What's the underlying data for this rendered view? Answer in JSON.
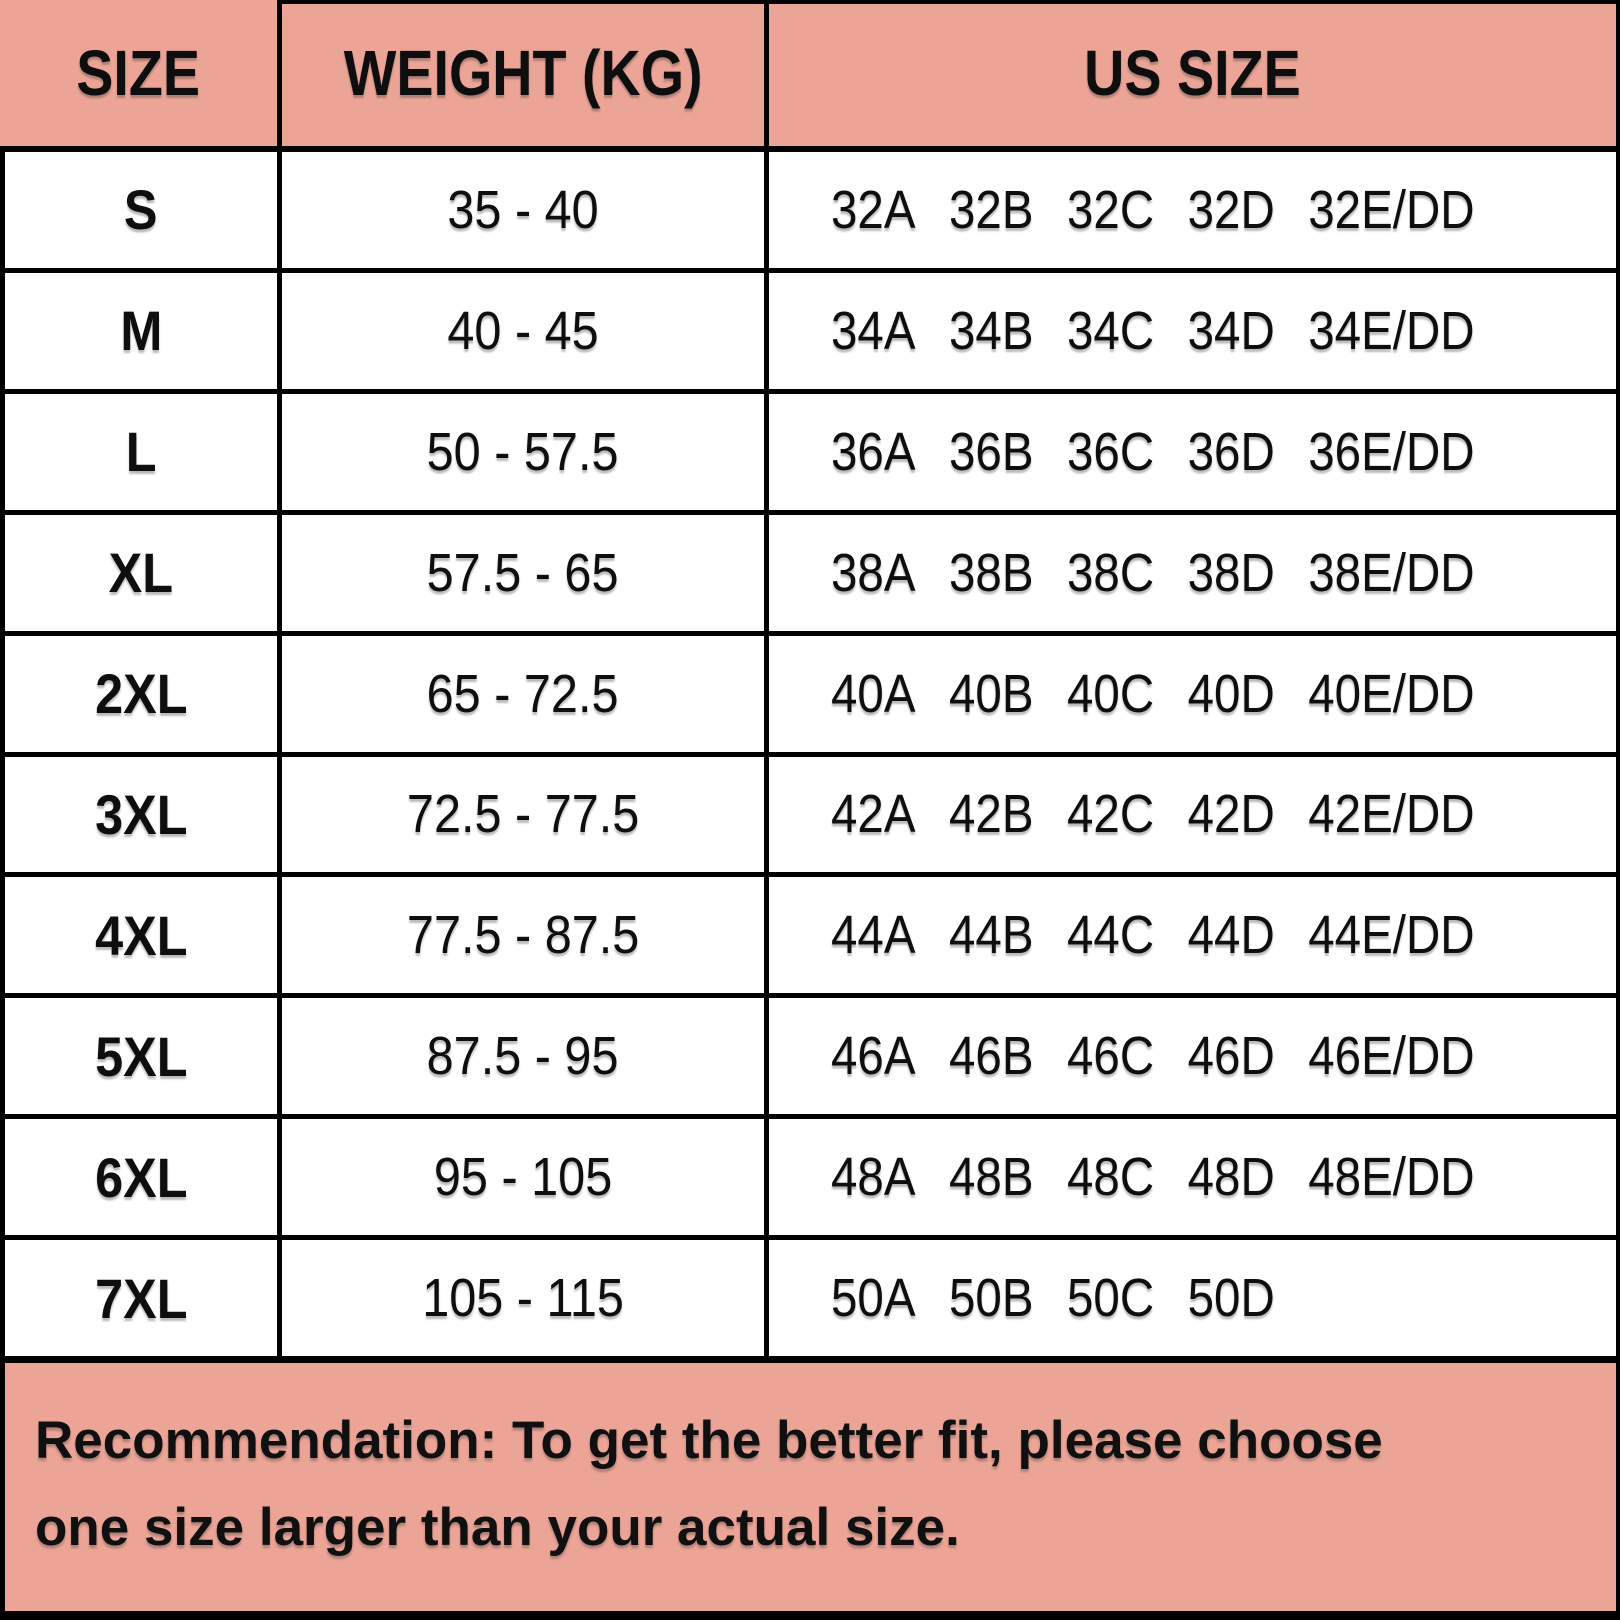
{
  "table": {
    "headers": [
      "SIZE",
      "WEIGHT (KG)",
      "US SIZE"
    ],
    "rows": [
      {
        "size": "S",
        "weight_kg": "35 - 40",
        "us_sizes": [
          "32A",
          "32B",
          "32C",
          "32D",
          "32E/DD"
        ]
      },
      {
        "size": "M",
        "weight_kg": "40 - 45",
        "us_sizes": [
          "34A",
          "34B",
          "34C",
          "34D",
          "34E/DD"
        ]
      },
      {
        "size": "L",
        "weight_kg": "50 - 57.5",
        "us_sizes": [
          "36A",
          "36B",
          "36C",
          "36D",
          "36E/DD"
        ]
      },
      {
        "size": "XL",
        "weight_kg": "57.5 - 65",
        "us_sizes": [
          "38A",
          "38B",
          "38C",
          "38D",
          "38E/DD"
        ]
      },
      {
        "size": "2XL",
        "weight_kg": "65 - 72.5",
        "us_sizes": [
          "40A",
          "40B",
          "40C",
          "40D",
          "40E/DD"
        ]
      },
      {
        "size": "3XL",
        "weight_kg": "72.5 - 77.5",
        "us_sizes": [
          "42A",
          "42B",
          "42C",
          "42D",
          "42E/DD"
        ]
      },
      {
        "size": "4XL",
        "weight_kg": "77.5 - 87.5",
        "us_sizes": [
          "44A",
          "44B",
          "44C",
          "44D",
          "44E/DD"
        ]
      },
      {
        "size": "5XL",
        "weight_kg": "87.5 - 95",
        "us_sizes": [
          "46A",
          "46B",
          "46C",
          "46D",
          "46E/DD"
        ]
      },
      {
        "size": "6XL",
        "weight_kg": "95 - 105",
        "us_sizes": [
          "48A",
          "48B",
          "48C",
          "48D",
          "48E/DD"
        ]
      },
      {
        "size": "7XL",
        "weight_kg": "105 - 115",
        "us_sizes": [
          "50A",
          "50B",
          "50C",
          "50D"
        ]
      }
    ]
  },
  "footer": {
    "lines": [
      "Recommendation: To get the better fit, please choose",
      "one size larger than your actual size."
    ]
  },
  "colors": {
    "accent_pink": "#ECA496",
    "border_black": "#000000"
  }
}
